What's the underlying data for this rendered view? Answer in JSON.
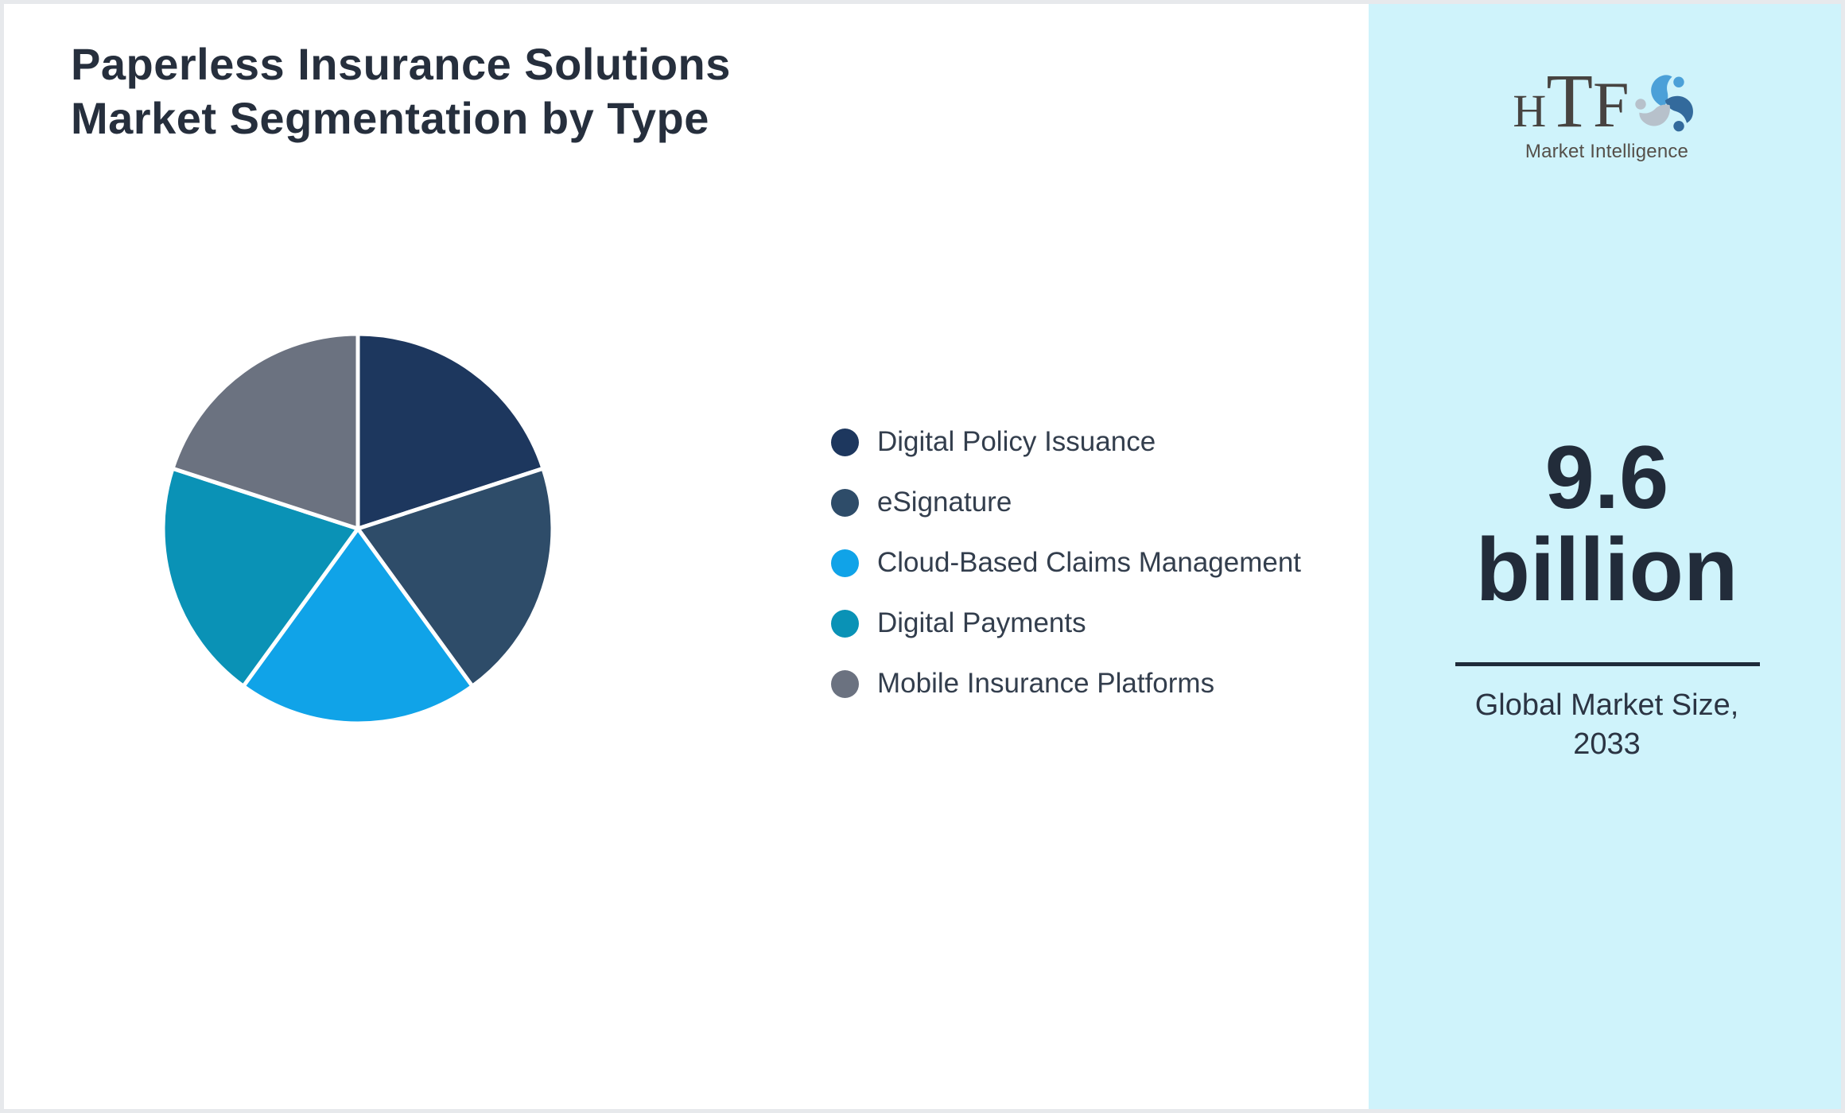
{
  "title": {
    "line1": "Paperless Insurance Solutions",
    "line2": "Market Segmentation by Type"
  },
  "chart_data": {
    "type": "pie",
    "title": "Paperless Insurance Solutions Market Segmentation by Type",
    "labels": [
      "Digital Policy Issuance",
      "eSignature",
      "Cloud-Based Claims Management",
      "Digital Payments",
      "Mobile Insurance Platforms"
    ],
    "values": [
      20,
      20,
      20,
      20,
      20
    ],
    "colors": [
      "#1d375e",
      "#2e4c69",
      "#10a3e8",
      "#0a92b6",
      "#6b7280"
    ],
    "start_angle_deg": 0,
    "direction": "clockwise",
    "slice_border_color": "#ffffff",
    "slice_border_width": 5,
    "legend_position": "right"
  },
  "sidebar": {
    "background": "#cff3fb",
    "logo": {
      "brand": "HTF",
      "subtitle": "Market Intelligence",
      "swirl_colors": [
        "#4ba0d8",
        "#336a9c",
        "#b7c1cb"
      ]
    },
    "market_size_value": "9.6",
    "market_size_unit": "billion",
    "caption_line1": "Global Market Size,",
    "caption_line2": "2033",
    "divider_color": "#1e2b3a"
  }
}
